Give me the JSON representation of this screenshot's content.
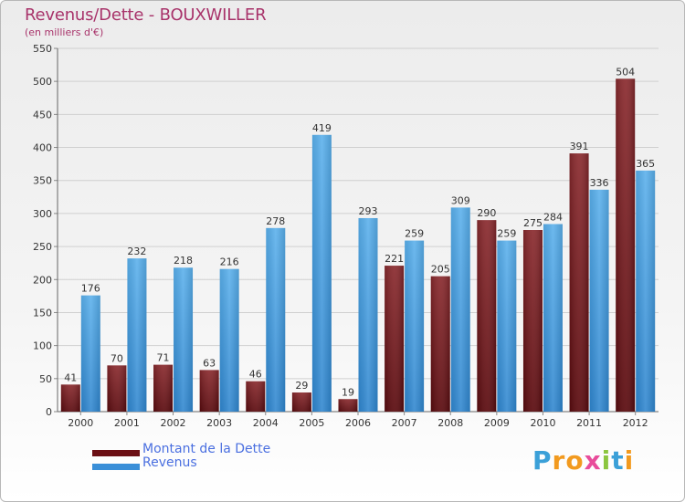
{
  "title": "Revenus/Dette - BOUXWILLER",
  "subtitle": "(en milliers d'€)",
  "colors": {
    "debt": "#7a1a1e",
    "revenue": "#4a9fe0",
    "title": "#a8336a",
    "legend_text": "#4a6fe0"
  },
  "legend": [
    {
      "label": "Montant de la Dette",
      "color": "#6b0f14"
    },
    {
      "label": "Revenus",
      "color": "#3a8fd8"
    }
  ],
  "logo": {
    "text": "Proxiti",
    "letters": [
      "P",
      "r",
      "o",
      "x",
      "i",
      "t",
      "i"
    ],
    "letter_colors": [
      "#3ba0d8",
      "#f29a1f",
      "#f29a1f",
      "#e84c9b",
      "#8cc63f",
      "#3ba0d8",
      "#f29a1f"
    ]
  },
  "chart_data": {
    "type": "bar",
    "categories": [
      "2000",
      "2001",
      "2002",
      "2003",
      "2004",
      "2005",
      "2006",
      "2007",
      "2008",
      "2009",
      "2010",
      "2011",
      "2012"
    ],
    "series": [
      {
        "name": "Montant de la Dette",
        "values": [
          41,
          70,
          71,
          63,
          46,
          29,
          19,
          221,
          205,
          290,
          275,
          391,
          504
        ]
      },
      {
        "name": "Revenus",
        "values": [
          176,
          232,
          218,
          216,
          278,
          419,
          293,
          259,
          309,
          259,
          284,
          336,
          365
        ]
      }
    ],
    "y_ticks": [
      "0",
      "50",
      "100",
      "150",
      "200",
      "250",
      "300",
      "350",
      "400",
      "450",
      "500",
      "550"
    ],
    "ylim": [
      0,
      550
    ],
    "grid": true,
    "legend_position": "bottom-left"
  }
}
